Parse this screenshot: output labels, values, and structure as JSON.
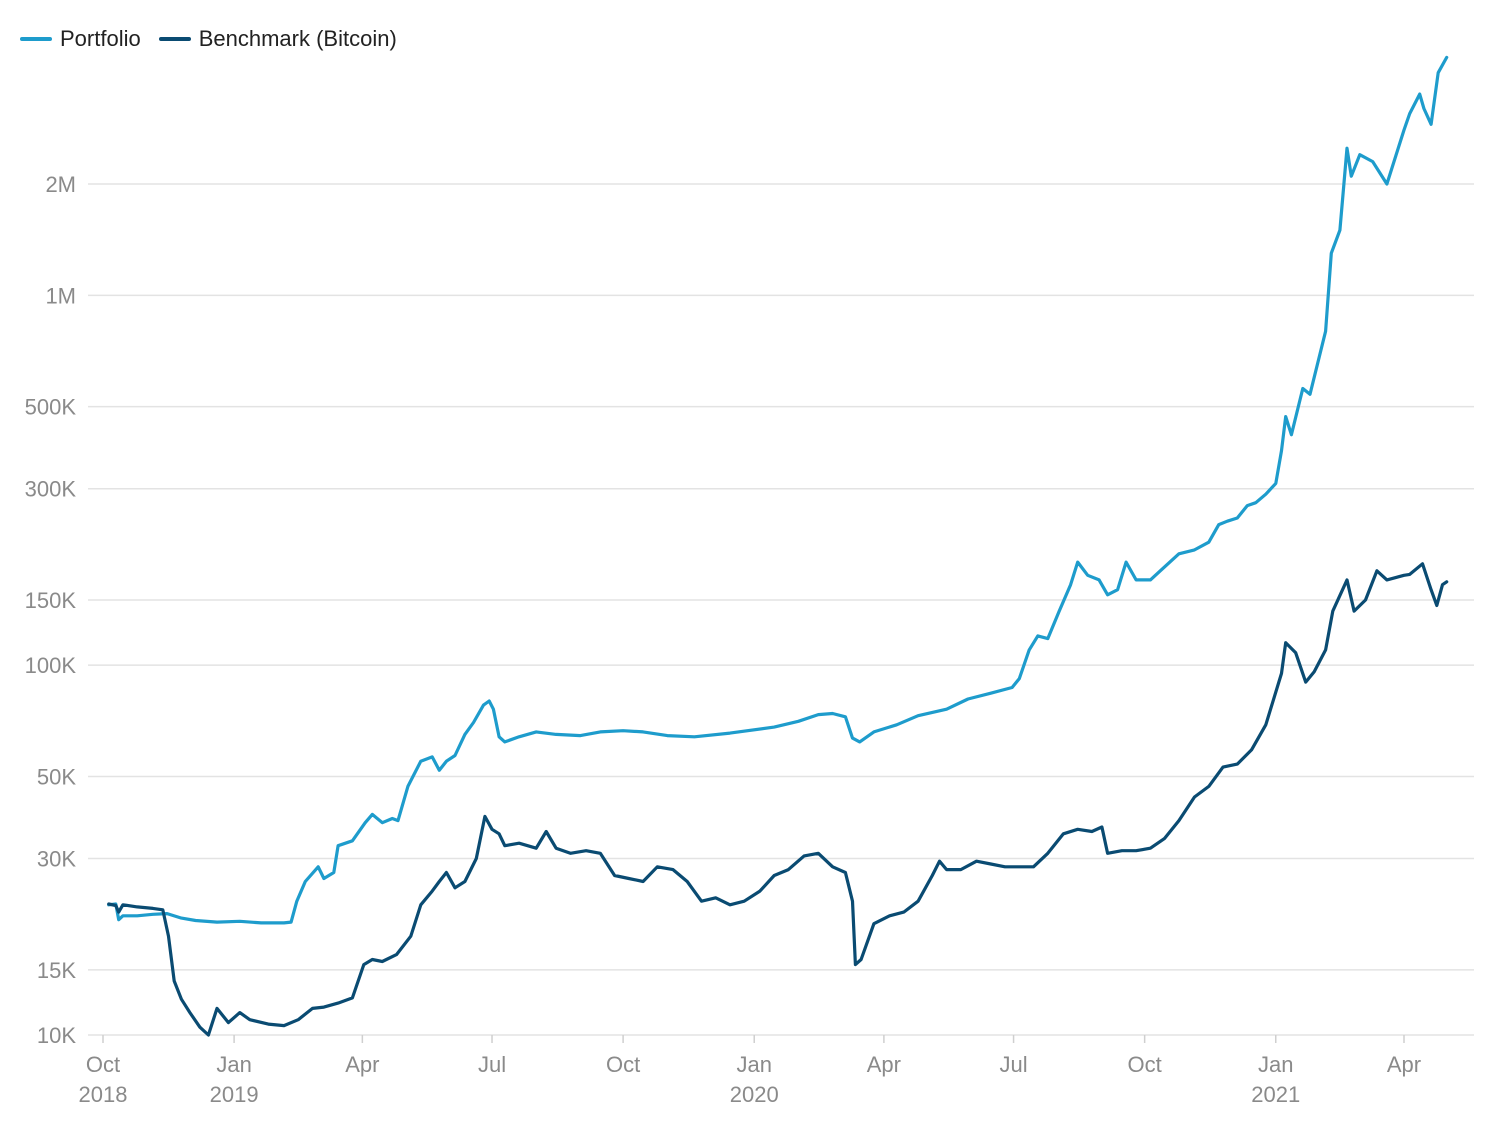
{
  "chart_data": {
    "type": "line",
    "y_scale": "log",
    "grid": "horizontal",
    "legend_position": "top-left",
    "colors": {
      "Portfolio": "#1e9ccc",
      "Benchmark (Bitcoin)": "#0a4b72"
    },
    "y_ticks": [
      10000,
      15000,
      30000,
      50000,
      100000,
      150000,
      300000,
      500000,
      1000000,
      2000000
    ],
    "y_tick_labels": [
      "10K",
      "15K",
      "30K",
      "50K",
      "100K",
      "150K",
      "300K",
      "500K",
      "1M",
      "2M"
    ],
    "x_ticks": [
      {
        "date": "2018-10-01",
        "label": "Oct",
        "year": "2018"
      },
      {
        "date": "2019-01-01",
        "label": "Jan",
        "year": "2019"
      },
      {
        "date": "2019-04-01",
        "label": "Apr",
        "year": ""
      },
      {
        "date": "2019-07-01",
        "label": "Jul",
        "year": ""
      },
      {
        "date": "2019-10-01",
        "label": "Oct",
        "year": ""
      },
      {
        "date": "2020-01-01",
        "label": "Jan",
        "year": "2020"
      },
      {
        "date": "2020-04-01",
        "label": "Apr",
        "year": ""
      },
      {
        "date": "2020-07-01",
        "label": "Jul",
        "year": ""
      },
      {
        "date": "2020-10-01",
        "label": "Oct",
        "year": ""
      },
      {
        "date": "2021-01-01",
        "label": "Jan",
        "year": "2021"
      },
      {
        "date": "2021-04-01",
        "label": "Apr",
        "year": ""
      }
    ],
    "series": [
      {
        "name": "Portfolio",
        "points": [
          [
            "2018-10-05",
            22500
          ],
          [
            "2018-10-10",
            22600
          ],
          [
            "2018-10-12",
            20500
          ],
          [
            "2018-10-15",
            21000
          ],
          [
            "2018-10-25",
            21000
          ],
          [
            "2018-11-05",
            21200
          ],
          [
            "2018-11-15",
            21300
          ],
          [
            "2018-11-25",
            20700
          ],
          [
            "2018-12-05",
            20400
          ],
          [
            "2018-12-20",
            20200
          ],
          [
            "2019-01-05",
            20300
          ],
          [
            "2019-01-20",
            20100
          ],
          [
            "2019-02-05",
            20100
          ],
          [
            "2019-02-10",
            20200
          ],
          [
            "2019-02-14",
            23000
          ],
          [
            "2019-02-20",
            26000
          ],
          [
            "2019-03-01",
            28500
          ],
          [
            "2019-03-05",
            26500
          ],
          [
            "2019-03-12",
            27500
          ],
          [
            "2019-03-15",
            32500
          ],
          [
            "2019-03-25",
            33500
          ],
          [
            "2019-04-03",
            37500
          ],
          [
            "2019-04-08",
            39500
          ],
          [
            "2019-04-15",
            37500
          ],
          [
            "2019-04-22",
            38500
          ],
          [
            "2019-04-26",
            38000
          ],
          [
            "2019-05-03",
            47000
          ],
          [
            "2019-05-12",
            55000
          ],
          [
            "2019-05-20",
            56500
          ],
          [
            "2019-05-25",
            52000
          ],
          [
            "2019-05-30",
            55000
          ],
          [
            "2019-06-05",
            57000
          ],
          [
            "2019-06-12",
            65000
          ],
          [
            "2019-06-18",
            70000
          ],
          [
            "2019-06-25",
            78000
          ],
          [
            "2019-06-29",
            80000
          ],
          [
            "2019-07-02",
            76000
          ],
          [
            "2019-07-06",
            64000
          ],
          [
            "2019-07-10",
            62000
          ],
          [
            "2019-07-20",
            64000
          ],
          [
            "2019-08-01",
            66000
          ],
          [
            "2019-08-15",
            65000
          ],
          [
            "2019-09-01",
            64500
          ],
          [
            "2019-09-15",
            66000
          ],
          [
            "2019-10-01",
            66500
          ],
          [
            "2019-10-15",
            66000
          ],
          [
            "2019-11-01",
            64500
          ],
          [
            "2019-11-20",
            64000
          ],
          [
            "2019-12-15",
            65500
          ],
          [
            "2020-01-15",
            68000
          ],
          [
            "2020-02-01",
            70500
          ],
          [
            "2020-02-15",
            73500
          ],
          [
            "2020-02-25",
            74000
          ],
          [
            "2020-03-05",
            72500
          ],
          [
            "2020-03-10",
            63500
          ],
          [
            "2020-03-15",
            62000
          ],
          [
            "2020-03-25",
            66000
          ],
          [
            "2020-04-10",
            69000
          ],
          [
            "2020-04-25",
            73000
          ],
          [
            "2020-05-15",
            76000
          ],
          [
            "2020-05-30",
            81000
          ],
          [
            "2020-06-15",
            84000
          ],
          [
            "2020-06-30",
            87000
          ],
          [
            "2020-07-05",
            92000
          ],
          [
            "2020-07-12",
            110000
          ],
          [
            "2020-07-18",
            120000
          ],
          [
            "2020-07-25",
            118000
          ],
          [
            "2020-08-02",
            140000
          ],
          [
            "2020-08-10",
            165000
          ],
          [
            "2020-08-15",
            190000
          ],
          [
            "2020-08-22",
            175000
          ],
          [
            "2020-08-30",
            170000
          ],
          [
            "2020-09-05",
            155000
          ],
          [
            "2020-09-12",
            160000
          ],
          [
            "2020-09-18",
            190000
          ],
          [
            "2020-09-25",
            170000
          ],
          [
            "2020-10-05",
            170000
          ],
          [
            "2020-10-12",
            180000
          ],
          [
            "2020-10-25",
            200000
          ],
          [
            "2020-11-05",
            205000
          ],
          [
            "2020-11-15",
            215000
          ],
          [
            "2020-11-22",
            240000
          ],
          [
            "2020-11-28",
            245000
          ],
          [
            "2020-12-05",
            250000
          ],
          [
            "2020-12-12",
            270000
          ],
          [
            "2020-12-18",
            275000
          ],
          [
            "2020-12-25",
            290000
          ],
          [
            "2021-01-01",
            310000
          ],
          [
            "2021-01-05",
            380000
          ],
          [
            "2021-01-08",
            470000
          ],
          [
            "2021-01-12",
            420000
          ],
          [
            "2021-01-20",
            560000
          ],
          [
            "2021-01-25",
            540000
          ],
          [
            "2021-02-05",
            800000
          ],
          [
            "2021-02-09",
            1300000
          ],
          [
            "2021-02-15",
            1500000
          ],
          [
            "2021-02-20",
            2500000
          ],
          [
            "2021-02-23",
            2100000
          ],
          [
            "2021-03-01",
            2400000
          ],
          [
            "2021-03-10",
            2300000
          ],
          [
            "2021-03-20",
            2000000
          ],
          [
            "2021-04-01",
            2800000
          ],
          [
            "2021-04-05",
            3100000
          ],
          [
            "2021-04-12",
            3500000
          ],
          [
            "2021-04-15",
            3200000
          ],
          [
            "2021-04-20",
            2900000
          ],
          [
            "2021-04-25",
            4000000
          ],
          [
            "2021-05-01",
            4400000
          ]
        ]
      },
      {
        "name": "Benchmark (Bitcoin)",
        "points": [
          [
            "2018-10-05",
            22600
          ],
          [
            "2018-10-10",
            22400
          ],
          [
            "2018-10-12",
            21500
          ],
          [
            "2018-10-15",
            22500
          ],
          [
            "2018-10-25",
            22200
          ],
          [
            "2018-11-05",
            22000
          ],
          [
            "2018-11-12",
            21800
          ],
          [
            "2018-11-16",
            18500
          ],
          [
            "2018-11-20",
            14000
          ],
          [
            "2018-11-25",
            12500
          ],
          [
            "2018-12-01",
            11500
          ],
          [
            "2018-12-08",
            10500
          ],
          [
            "2018-12-14",
            10000
          ],
          [
            "2018-12-20",
            11800
          ],
          [
            "2018-12-28",
            10800
          ],
          [
            "2019-01-05",
            11500
          ],
          [
            "2019-01-12",
            11000
          ],
          [
            "2019-01-25",
            10700
          ],
          [
            "2019-02-05",
            10600
          ],
          [
            "2019-02-15",
            11000
          ],
          [
            "2019-02-25",
            11800
          ],
          [
            "2019-03-05",
            11900
          ],
          [
            "2019-03-15",
            12200
          ],
          [
            "2019-03-25",
            12600
          ],
          [
            "2019-04-02",
            15500
          ],
          [
            "2019-04-08",
            16000
          ],
          [
            "2019-04-15",
            15800
          ],
          [
            "2019-04-25",
            16500
          ],
          [
            "2019-05-05",
            18500
          ],
          [
            "2019-05-12",
            22500
          ],
          [
            "2019-05-20",
            24500
          ],
          [
            "2019-05-25",
            26000
          ],
          [
            "2019-05-30",
            27500
          ],
          [
            "2019-06-05",
            25000
          ],
          [
            "2019-06-12",
            26000
          ],
          [
            "2019-06-20",
            30000
          ],
          [
            "2019-06-26",
            39000
          ],
          [
            "2019-07-01",
            36000
          ],
          [
            "2019-07-06",
            35000
          ],
          [
            "2019-07-10",
            32500
          ],
          [
            "2019-07-20",
            33000
          ],
          [
            "2019-08-01",
            32000
          ],
          [
            "2019-08-08",
            35500
          ],
          [
            "2019-08-15",
            32000
          ],
          [
            "2019-08-25",
            31000
          ],
          [
            "2019-09-05",
            31500
          ],
          [
            "2019-09-15",
            31000
          ],
          [
            "2019-09-25",
            27000
          ],
          [
            "2019-10-05",
            26500
          ],
          [
            "2019-10-15",
            26000
          ],
          [
            "2019-10-25",
            28500
          ],
          [
            "2019-11-05",
            28000
          ],
          [
            "2019-11-15",
            26000
          ],
          [
            "2019-11-25",
            23000
          ],
          [
            "2019-12-05",
            23500
          ],
          [
            "2019-12-15",
            22500
          ],
          [
            "2019-12-25",
            23000
          ],
          [
            "2020-01-05",
            24500
          ],
          [
            "2020-01-15",
            27000
          ],
          [
            "2020-01-25",
            28000
          ],
          [
            "2020-02-05",
            30500
          ],
          [
            "2020-02-15",
            31000
          ],
          [
            "2020-02-25",
            28500
          ],
          [
            "2020-03-05",
            27500
          ],
          [
            "2020-03-10",
            23000
          ],
          [
            "2020-03-12",
            15500
          ],
          [
            "2020-03-16",
            16000
          ],
          [
            "2020-03-25",
            20000
          ],
          [
            "2020-04-05",
            21000
          ],
          [
            "2020-04-15",
            21500
          ],
          [
            "2020-04-25",
            23000
          ],
          [
            "2020-05-05",
            27000
          ],
          [
            "2020-05-10",
            29500
          ],
          [
            "2020-05-15",
            28000
          ],
          [
            "2020-05-25",
            28000
          ],
          [
            "2020-06-05",
            29500
          ],
          [
            "2020-06-15",
            29000
          ],
          [
            "2020-06-25",
            28500
          ],
          [
            "2020-07-05",
            28500
          ],
          [
            "2020-07-15",
            28500
          ],
          [
            "2020-07-25",
            31000
          ],
          [
            "2020-08-05",
            35000
          ],
          [
            "2020-08-15",
            36000
          ],
          [
            "2020-08-25",
            35500
          ],
          [
            "2020-09-01",
            36500
          ],
          [
            "2020-09-05",
            31000
          ],
          [
            "2020-09-15",
            31500
          ],
          [
            "2020-09-25",
            31500
          ],
          [
            "2020-10-05",
            32000
          ],
          [
            "2020-10-15",
            34000
          ],
          [
            "2020-10-25",
            38000
          ],
          [
            "2020-11-05",
            44000
          ],
          [
            "2020-11-15",
            47000
          ],
          [
            "2020-11-25",
            53000
          ],
          [
            "2020-12-05",
            54000
          ],
          [
            "2020-12-15",
            59000
          ],
          [
            "2020-12-25",
            69000
          ],
          [
            "2021-01-05",
            95000
          ],
          [
            "2021-01-08",
            115000
          ],
          [
            "2021-01-15",
            108000
          ],
          [
            "2021-01-22",
            90000
          ],
          [
            "2021-01-28",
            96000
          ],
          [
            "2021-02-05",
            110000
          ],
          [
            "2021-02-10",
            140000
          ],
          [
            "2021-02-20",
            170000
          ],
          [
            "2021-02-25",
            140000
          ],
          [
            "2021-03-05",
            150000
          ],
          [
            "2021-03-13",
            180000
          ],
          [
            "2021-03-20",
            170000
          ],
          [
            "2021-04-01",
            175000
          ],
          [
            "2021-04-05",
            176000
          ],
          [
            "2021-04-14",
            188000
          ],
          [
            "2021-04-20",
            160000
          ],
          [
            "2021-04-24",
            145000
          ],
          [
            "2021-04-28",
            165000
          ],
          [
            "2021-05-01",
            168000
          ]
        ]
      }
    ]
  }
}
